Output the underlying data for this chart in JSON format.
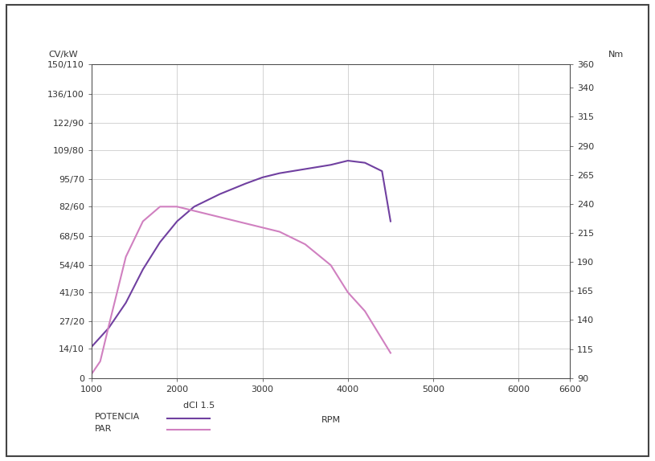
{
  "title": "",
  "xlabel": "RPM",
  "ylabel_left": "CV/kW",
  "ylabel_right": "Nm",
  "legend_title": "dCI 1.5",
  "legend_items": [
    "POTENCIA",
    "PAR"
  ],
  "x_ticks": [
    1000,
    2000,
    3000,
    4000,
    5000,
    6000,
    6600
  ],
  "xlim": [
    1000,
    6600
  ],
  "ylim_left": [
    0,
    150
  ],
  "ylim_right": [
    90,
    360
  ],
  "yticks_left": [
    0,
    14,
    27,
    41,
    54,
    68,
    82,
    95,
    109,
    122,
    136,
    150
  ],
  "ytick_labels_left": [
    "0",
    "14/10",
    "27/20",
    "41/30",
    "54/40",
    "68/50",
    "82/60",
    "95/70",
    "109/80",
    "122/90",
    "136/100",
    "150/110"
  ],
  "yticks_right": [
    90,
    115,
    140,
    165,
    190,
    215,
    240,
    265,
    290,
    315,
    340,
    360
  ],
  "ytick_labels_right": [
    "90",
    "115",
    "140",
    "165",
    "190",
    "215",
    "240",
    "265",
    "290",
    "315",
    "340",
    "360"
  ],
  "potencia_x": [
    1000,
    1200,
    1400,
    1600,
    1800,
    2000,
    2200,
    2500,
    2800,
    3000,
    3200,
    3500,
    3800,
    4000,
    4200,
    4400,
    4500
  ],
  "potencia_y": [
    15,
    24,
    36,
    52,
    65,
    75,
    82,
    88,
    93,
    96,
    98,
    100,
    102,
    104,
    103,
    99,
    75
  ],
  "par_x": [
    1000,
    1100,
    1200,
    1400,
    1600,
    1800,
    2000,
    2200,
    2500,
    2800,
    3000,
    3200,
    3500,
    3800,
    4000,
    4200,
    4500
  ],
  "par_y": [
    2,
    8,
    25,
    58,
    75,
    82,
    82,
    80,
    77,
    74,
    72,
    70,
    64,
    54,
    41,
    32,
    12
  ],
  "potencia_color": "#7040A0",
  "par_color": "#D080C0",
  "background_color": "#FFFFFF",
  "plot_bg_color": "#FFFFFF",
  "outer_bg_color": "#FFFFFF",
  "grid_color": "#BBBBBB",
  "font_color": "#333333",
  "border_color": "#444444",
  "font_size": 8,
  "line_width": 1.5
}
